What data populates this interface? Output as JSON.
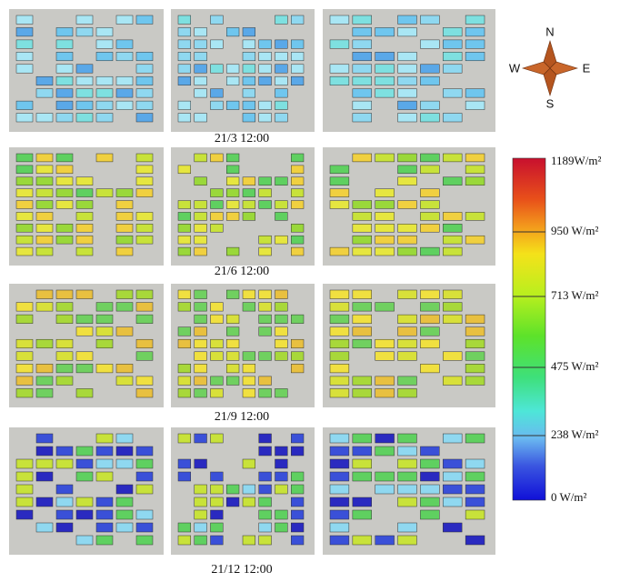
{
  "rows": [
    {
      "label": "21/3 12:00"
    },
    {
      "label": "21/6 12:00"
    },
    {
      "label": "21/9 12:00"
    },
    {
      "label": "21/12 12:00"
    }
  ],
  "compass": {
    "north": "N",
    "south": "S",
    "west": "W",
    "east": "E"
  },
  "legend": {
    "labels": [
      "1189W/m²",
      "950 W/m²",
      "713 W/m²",
      "475 W/m²",
      "238 W/m²",
      "0 W/m²"
    ]
  }
}
